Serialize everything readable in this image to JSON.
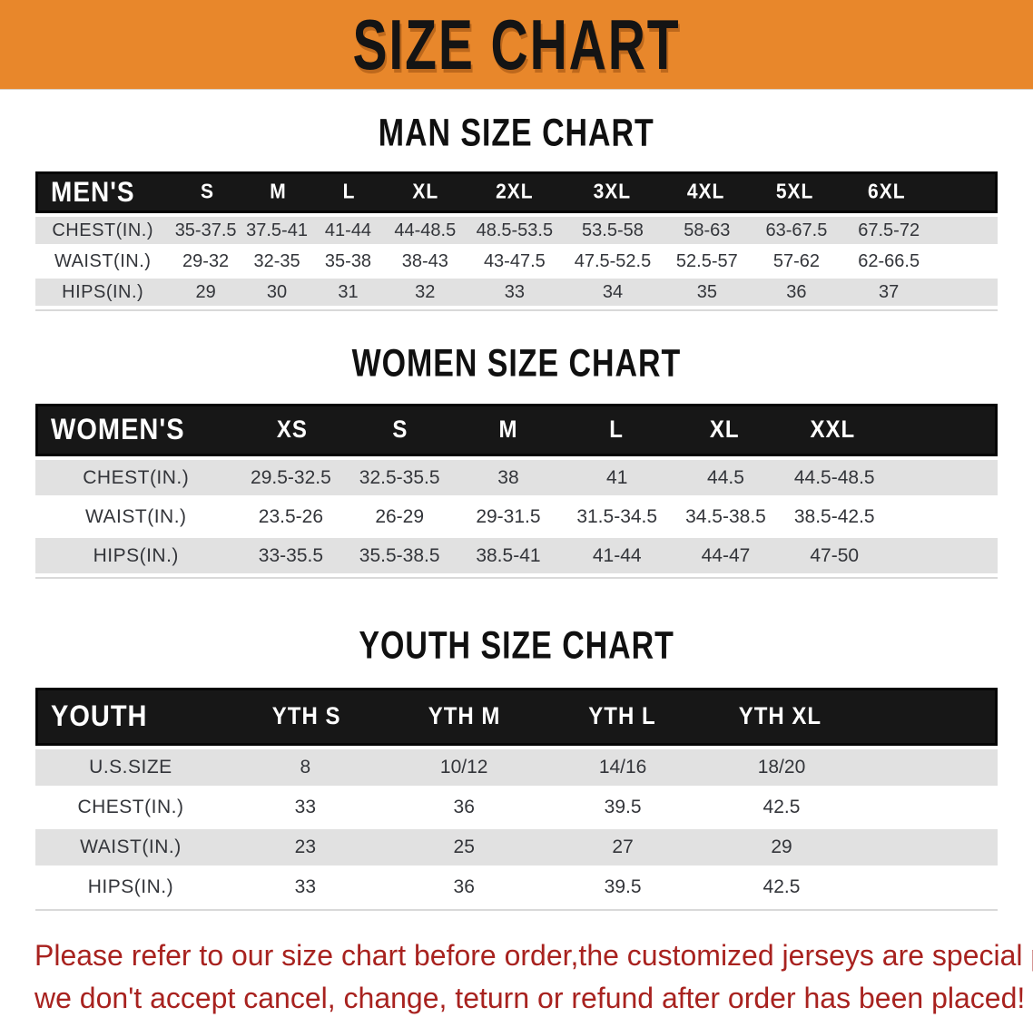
{
  "banner": {
    "title": "SIZE CHART",
    "bg_color": "#E8872B"
  },
  "sections": [
    {
      "heading": "MAN SIZE CHART",
      "label": "MEN'S",
      "columns": [
        "S",
        "M",
        "L",
        "XL",
        "2XL",
        "3XL",
        "4XL",
        "5XL",
        "6XL"
      ],
      "rows": [
        {
          "label": "CHEST(IN.)",
          "values": [
            "35-37.5",
            "37.5-41",
            "41-44",
            "44-48.5",
            "48.5-53.5",
            "53.5-58",
            "58-63",
            "63-67.5",
            "67.5-72"
          ]
        },
        {
          "label": "WAIST(IN.)",
          "values": [
            "29-32",
            "32-35",
            "35-38",
            "38-43",
            "43-47.5",
            "47.5-52.5",
            "52.5-57",
            "57-62",
            "62-66.5"
          ]
        },
        {
          "label": "HIPS(IN.)",
          "values": [
            "29",
            "30",
            "31",
            "32",
            "33",
            "34",
            "35",
            "36",
            "37"
          ]
        }
      ]
    },
    {
      "heading": "WOMEN SIZE CHART",
      "label": "WOMEN'S",
      "columns": [
        "XS",
        "S",
        "M",
        "L",
        "XL",
        "XXL"
      ],
      "rows": [
        {
          "label": "CHEST(IN.)",
          "values": [
            "29.5-32.5",
            "32.5-35.5",
            "38",
            "41",
            "44.5",
            "44.5-48.5"
          ]
        },
        {
          "label": "WAIST(IN.)",
          "values": [
            "23.5-26",
            "26-29",
            "29-31.5",
            "31.5-34.5",
            "34.5-38.5",
            "38.5-42.5"
          ]
        },
        {
          "label": "HIPS(IN.)",
          "values": [
            "33-35.5",
            "35.5-38.5",
            "38.5-41",
            "41-44",
            "44-47",
            "47-50"
          ]
        }
      ]
    },
    {
      "heading": "YOUTH SIZE CHART",
      "label": "YOUTH",
      "columns": [
        "YTH S",
        "YTH M",
        "YTH L",
        "YTH XL"
      ],
      "rows": [
        {
          "label": "U.S.SIZE",
          "values": [
            "8",
            "10/12",
            "14/16",
            "18/20"
          ]
        },
        {
          "label": "CHEST(IN.)",
          "values": [
            "33",
            "36",
            "39.5",
            "42.5"
          ]
        },
        {
          "label": "WAIST(IN.)",
          "values": [
            "23",
            "25",
            "27",
            "29"
          ]
        },
        {
          "label": "HIPS(IN.)",
          "values": [
            "33",
            "36",
            "39.5",
            "42.5"
          ]
        }
      ]
    }
  ],
  "footer": {
    "line1": "Please refer to our size chart before order,the customized jerseys are special products,",
    "line2": "we don't accept cancel, change, teturn or refund after order has been placed!",
    "text_color": "#A8221F"
  }
}
